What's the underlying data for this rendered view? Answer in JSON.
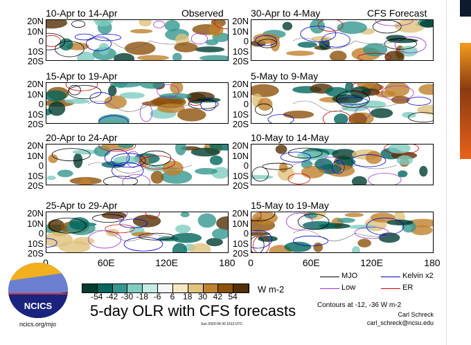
{
  "panels_left": [
    {
      "title": "10-Apr to 14-Apr",
      "tag": "Observed"
    },
    {
      "title": "15-Apr to 19-Apr"
    },
    {
      "title": "20-Apr to 24-Apr"
    },
    {
      "title": "25-Apr to 29-Apr"
    }
  ],
  "panels_right": [
    {
      "title": "30-Apr to 4-May",
      "tag": "CFS Forecast"
    },
    {
      "title": "5-May to 9-May"
    },
    {
      "title": "10-May to 14-May"
    },
    {
      "title": "15-May to 19-May"
    }
  ],
  "lat_labels": [
    "20N",
    "10N",
    "0",
    "10S",
    "20S"
  ],
  "lon_labels": [
    "0",
    "60E",
    "120E",
    "180"
  ],
  "colorbar": {
    "labels": [
      "-54",
      "-42",
      "-30",
      "-18",
      "-6",
      "6",
      "18",
      "30",
      "42",
      "54"
    ],
    "units": "W m-2",
    "colors": [
      "#003c30",
      "#01665e",
      "#35978f",
      "#80cdc1",
      "#c7eae5",
      "#f5f5f5",
      "#f6e8c3",
      "#dfc27d",
      "#bf812d",
      "#8c510a",
      "#543005"
    ]
  },
  "title": "5-day OLR with CFS forecasts",
  "logo_text": "NCICS",
  "website": "ncics.org/mjo",
  "timestamp": "Sun 2023-04-30 1613 UTC",
  "legend": [
    {
      "label": "MJO",
      "color": "#000000"
    },
    {
      "label": "Kelvin x2",
      "color": "#0000cc"
    },
    {
      "label": "Low",
      "color": "#9933cc"
    },
    {
      "label": "ER",
      "color": "#cc0000"
    }
  ],
  "contours_note": "Contours at -12, -36 W m-2",
  "author": "Carl Schreck",
  "email": "carl_schreck@ncsu.edu"
}
